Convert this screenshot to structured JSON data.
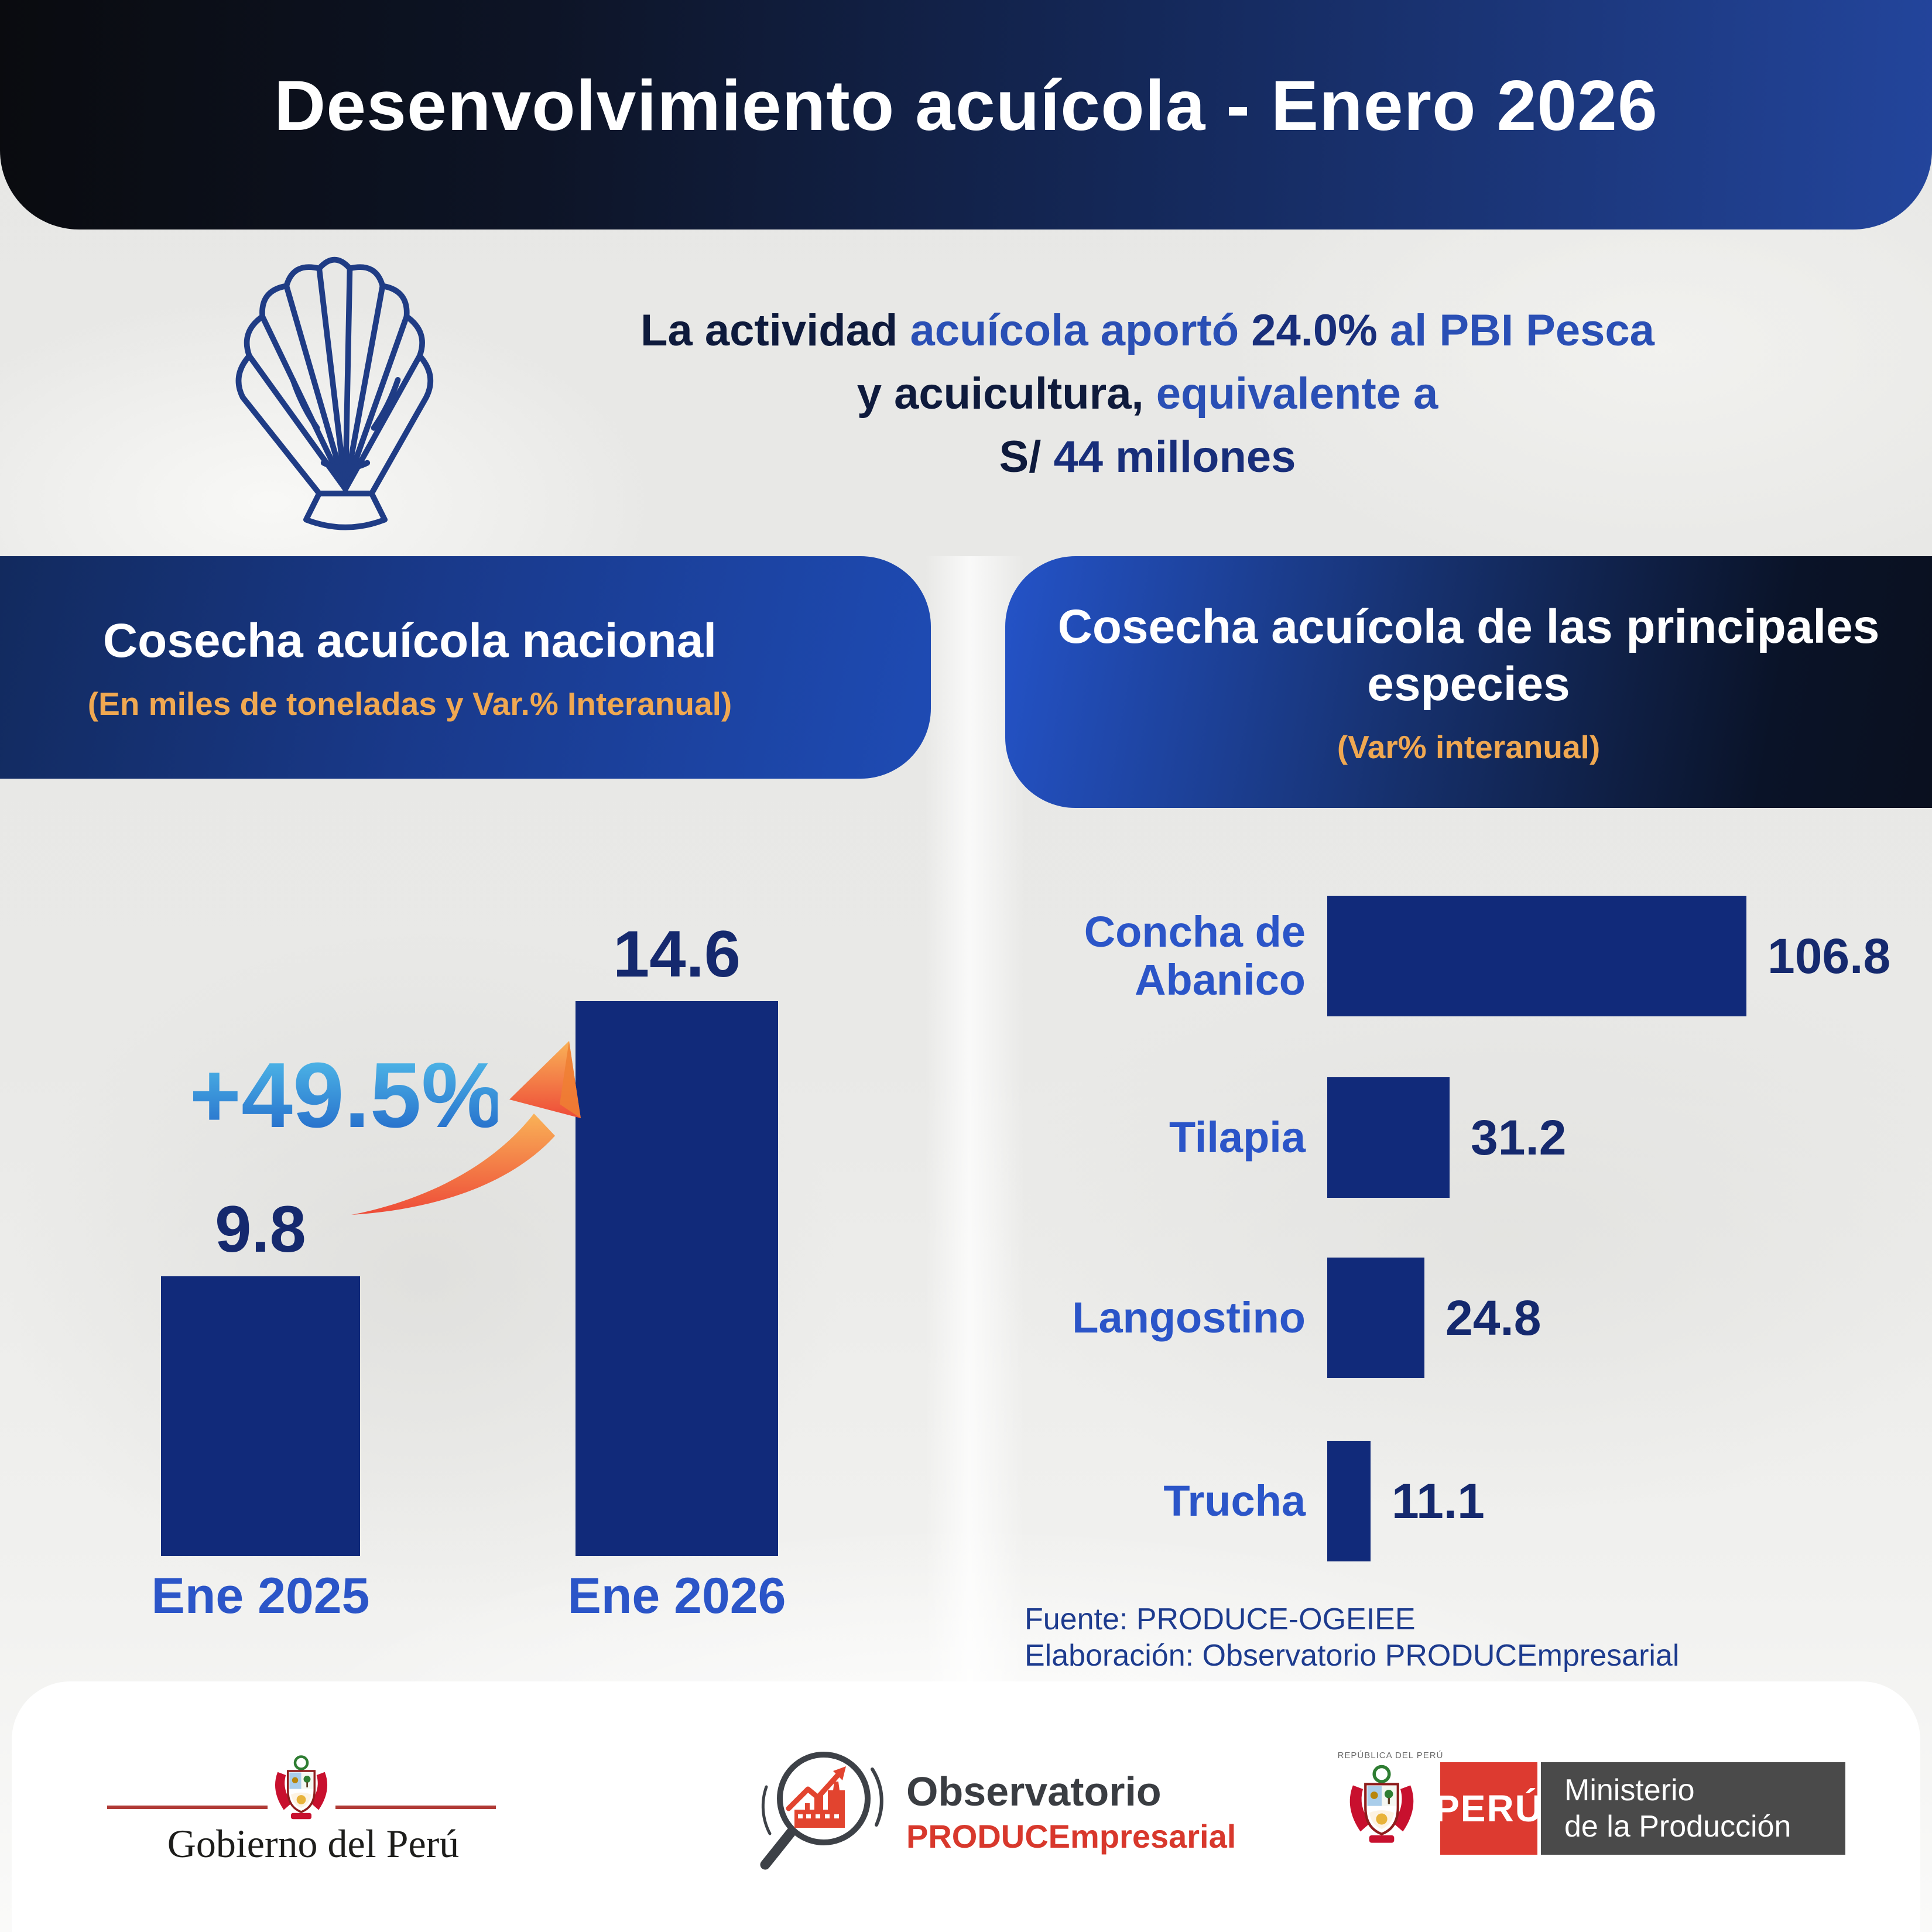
{
  "header": {
    "title": "Desenvolvimiento acuícola - Enero 2026"
  },
  "intro": {
    "lines": [
      [
        {
          "t": "La actividad ",
          "s": "dark"
        },
        {
          "t": "acuícola aportó ",
          "s": "blue"
        },
        {
          "t": "24.0%",
          "s": "darkbold"
        },
        {
          "t": " al PBI Pesca",
          "s": "blue"
        }
      ],
      [
        {
          "t": "y acuicultura, ",
          "s": "dark"
        },
        {
          "t": "equivalente a",
          "s": "blue"
        }
      ],
      [
        {
          "t": "S/ ",
          "s": "dark"
        },
        {
          "t": "44 millones",
          "s": "darkbold"
        }
      ]
    ]
  },
  "left_panel": {
    "title": "Cosecha acuícola nacional",
    "subtitle": "(En miles de toneladas y Var.% Interanual)"
  },
  "right_panel": {
    "title_line1": "Cosecha acuícola de las principales",
    "title_line2": "especies",
    "subtitle": "(Var% interanual)"
  },
  "chart_data": [
    {
      "type": "bar",
      "title": "Cosecha acuícola nacional",
      "ylabel": "miles de toneladas",
      "categories": [
        "Ene 2025",
        "Ene 2026"
      ],
      "values": [
        9.8,
        14.6
      ],
      "annotation": "+49.5%",
      "ylim": [
        0,
        16
      ],
      "grid": false,
      "legend": false
    },
    {
      "type": "bar",
      "orientation": "horizontal",
      "title": "Cosecha acuícola de las principales especies",
      "xlabel": "Var% interanual",
      "categories": [
        "Concha de Abanico",
        "Tilapia",
        "Langostino",
        "Trucha"
      ],
      "categories_display": [
        [
          "Concha de",
          "Abanico"
        ],
        [
          "Tilapia"
        ],
        [
          "Langostino"
        ],
        [
          "Trucha"
        ]
      ],
      "values": [
        106.8,
        31.2,
        24.8,
        11.1
      ],
      "xlim": [
        0,
        110
      ],
      "grid": false,
      "legend": false
    }
  ],
  "source": {
    "line1": "Fuente: PRODUCE-OGEIEE",
    "line2": "Elaboración: Observatorio PRODUCEmpresarial"
  },
  "footer": {
    "gobierno_label": "Gobierno del Perú",
    "observatorio_line1": "Observatorio",
    "observatorio_line2": "PRODUCEmpresarial",
    "republica_label": "REPÚBLICA DEL PERÚ",
    "peru_label": "PERÚ",
    "ministerio_line1": "Ministerio",
    "ministerio_line2": "de la Producción"
  },
  "colors": {
    "bar": "#112a7a",
    "label_blue": "#2b55c8",
    "value_navy": "#15296e",
    "accent_orange": "#f0a851",
    "brand_red": "#dd3a30",
    "growth_gradient_top": "#55c3ec",
    "growth_gradient_bottom": "#1e61c6",
    "arrow_gradient_top": "#f9b257",
    "arrow_gradient_bottom": "#ee4b38"
  }
}
